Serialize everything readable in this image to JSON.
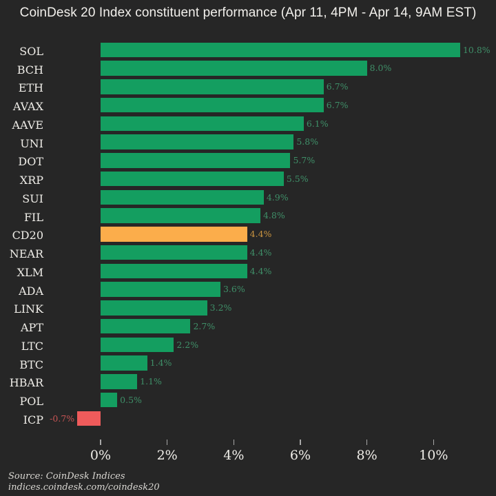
{
  "title": "CoinDesk 20 Index constituent performance (Apr 11, 4PM - Apr 14, 9AM EST)",
  "chart_data": {
    "type": "bar",
    "orientation": "horizontal",
    "categories": [
      "SOL",
      "BCH",
      "ETH",
      "AVAX",
      "AAVE",
      "UNI",
      "DOT",
      "XRP",
      "SUI",
      "FIL",
      "CD20",
      "NEAR",
      "XLM",
      "ADA",
      "LINK",
      "APT",
      "LTC",
      "BTC",
      "HBAR",
      "POL",
      "ICP"
    ],
    "values": [
      10.8,
      8.0,
      6.7,
      6.7,
      6.1,
      5.8,
      5.7,
      5.5,
      4.9,
      4.8,
      4.4,
      4.4,
      4.4,
      3.6,
      3.2,
      2.7,
      2.2,
      1.4,
      1.1,
      0.5,
      -0.7
    ],
    "value_labels": [
      "10.8%",
      "8.0%",
      "6.7%",
      "6.7%",
      "6.1%",
      "5.8%",
      "5.7%",
      "5.5%",
      "4.9%",
      "4.8%",
      "4.4%",
      "4.4%",
      "4.4%",
      "3.6%",
      "3.2%",
      "2.7%",
      "2.2%",
      "1.4%",
      "1.1%",
      "0.5%",
      "-0.7%"
    ],
    "highlight_category": "CD20",
    "title": "CoinDesk 20 Index constituent performance (Apr 11, 4PM - Apr 14, 9AM EST)",
    "xlabel": "",
    "ylabel": "",
    "x_ticks": [
      "0%",
      "2%",
      "4%",
      "6%",
      "8%",
      "10%"
    ],
    "x_tick_values": [
      0,
      2,
      4,
      6,
      8,
      10
    ],
    "xlim": [
      -3,
      11.9
    ],
    "grid": false,
    "legend": false,
    "bar_color_rule": "green for positive, orange for CD20 index highlight, red for negative"
  },
  "colors": {
    "background": "#262626",
    "title": "#F2F0EC",
    "label": "#EFEDE8",
    "tick": "#A8A8A8",
    "source": "#D9D7D2",
    "bar_positive": "#149E60",
    "bar_highlight": "#FBAD4B",
    "bar_negative": "#EF5B5B",
    "value_positive": "#3F8F68",
    "value_highlight": "#CA9440",
    "value_negative": "#C95555"
  },
  "source": {
    "line1": "Source: CoinDesk Indices",
    "line2": "indices.coindesk.com/coindesk20"
  }
}
